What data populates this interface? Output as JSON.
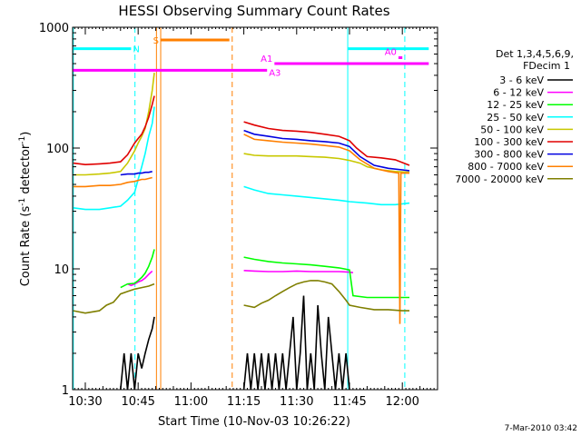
{
  "chart_data": {
    "type": "line",
    "title": "HESSI Observing Summary Count Rates",
    "xlabel": "Start Time (10-Nov-03 10:26:22)",
    "ylabel_main": "Count Rate (s",
    "ylabel_sup1": "-1",
    "ylabel_mid": " detector",
    "ylabel_sup2": "-1",
    "ylabel_end": ")",
    "footer": "7-Mar-2010 03:42",
    "y_scale": "log",
    "ylim": [
      1,
      1000
    ],
    "xlim_min": [
      626.4,
      730
    ],
    "y_ticks": [
      {
        "value": 1,
        "label": "1"
      },
      {
        "value": 10,
        "label": "10"
      },
      {
        "value": 100,
        "label": "100"
      },
      {
        "value": 1000,
        "label": "1000"
      }
    ],
    "x_ticks": [
      {
        "min": 630,
        "label": "10:30"
      },
      {
        "min": 645,
        "label": "10:45"
      },
      {
        "min": 660,
        "label": "11:00"
      },
      {
        "min": 675,
        "label": "11:15"
      },
      {
        "min": 690,
        "label": "11:30"
      },
      {
        "min": 705,
        "label": "11:45"
      },
      {
        "min": 720,
        "label": "12:00"
      }
    ],
    "legend": {
      "placement": "right",
      "header": [
        "Det 1,3,4,5,6,9,",
        "FDecim 1"
      ],
      "entries": [
        {
          "label": "3 - 6 keV",
          "color": "#000000"
        },
        {
          "label": "6 - 12 keV",
          "color": "#ff00ff"
        },
        {
          "label": "12 - 25 keV",
          "color": "#00ff00"
        },
        {
          "label": "25 - 50 keV",
          "color": "#00ffff"
        },
        {
          "label": "50 - 100 keV",
          "color": "#c8c800"
        },
        {
          "label": "100 - 300 keV",
          "color": "#e00000"
        },
        {
          "label": "300 - 800 keV",
          "color": "#0000e0"
        },
        {
          "label": "800 - 7000 keV",
          "color": "#ff7f00"
        },
        {
          "label": "7000 - 20000 keV",
          "color": "#7f7f00"
        }
      ]
    },
    "vertical_lines": [
      {
        "min": 626.6,
        "color": "#00ffff",
        "style": "solid"
      },
      {
        "min": 644.1,
        "color": "#00ffff",
        "style": "dashed"
      },
      {
        "min": 650.2,
        "color": "#ff7f00",
        "style": "solid"
      },
      {
        "min": 651.4,
        "color": "#ff7f00",
        "style": "solid"
      },
      {
        "min": 671.7,
        "color": "#ff7f00",
        "style": "dashed"
      },
      {
        "min": 704.5,
        "color": "#00ffff",
        "style": "solid"
      },
      {
        "min": 720.7,
        "color": "#00ffff",
        "style": "dashed"
      }
    ],
    "flag_bars": [
      {
        "label": "N",
        "color": "#00ffff",
        "y": 665,
        "segments": [
          [
            626.4,
            643.0
          ]
        ]
      },
      {
        "label": "",
        "color": "#00ffff",
        "y": 665,
        "segments": [
          [
            704.5,
            727.5
          ]
        ]
      },
      {
        "label": "S",
        "color": "#ff7f00",
        "y": 785,
        "segments": [
          [
            651.4,
            670.9
          ]
        ]
      },
      {
        "label": "A1",
        "color": "#ff00ff",
        "y": 500,
        "segments": [
          [
            683.7,
            727.5
          ]
        ]
      },
      {
        "label": "A3",
        "color": "#ff00ff",
        "y": 440,
        "segments": [
          [
            626.4,
            681.6
          ]
        ]
      },
      {
        "label": "A0",
        "color": "#ff00ff",
        "y": 560,
        "segments": [
          [
            718.9,
            720.0
          ]
        ]
      }
    ],
    "series": [
      {
        "name": "3 - 6 keV",
        "color": "#000000",
        "points": [
          [
            640,
            1
          ],
          [
            641,
            2
          ],
          [
            642,
            1
          ],
          [
            643,
            2
          ],
          [
            644,
            1
          ],
          [
            645,
            2
          ],
          [
            646,
            1.5
          ],
          [
            647,
            2
          ],
          [
            648,
            2.6
          ],
          [
            649,
            3.2
          ],
          [
            649.6,
            4
          ]
        ]
      },
      {
        "name": "3 - 6 keV",
        "color": "#000000",
        "points": [
          [
            675,
            1
          ],
          [
            676,
            2
          ],
          [
            677,
            1
          ],
          [
            678,
            2
          ],
          [
            679,
            1
          ],
          [
            680,
            2
          ],
          [
            681,
            1
          ],
          [
            682,
            2
          ],
          [
            683,
            1
          ],
          [
            684,
            2
          ],
          [
            685,
            1
          ],
          [
            686,
            2
          ],
          [
            687,
            1
          ],
          [
            688,
            2
          ],
          [
            689,
            4
          ],
          [
            690,
            1
          ],
          [
            691,
            2
          ],
          [
            692,
            6
          ],
          [
            693,
            1
          ],
          [
            694,
            2
          ],
          [
            695,
            1
          ],
          [
            696,
            5
          ],
          [
            697,
            2
          ],
          [
            698,
            1
          ],
          [
            699,
            4
          ],
          [
            700,
            2
          ],
          [
            701,
            1
          ],
          [
            702,
            2
          ],
          [
            703,
            1
          ],
          [
            704,
            2
          ],
          [
            705,
            1
          ]
        ]
      },
      {
        "name": "6 - 12 keV",
        "color": "#ff00ff",
        "points": [
          [
            642,
            7.5
          ],
          [
            643,
            7.3
          ],
          [
            644,
            7.5
          ],
          [
            645,
            7.8
          ],
          [
            646,
            8.0
          ],
          [
            647,
            8.4
          ],
          [
            648,
            9.0
          ],
          [
            649,
            9.6
          ]
        ]
      },
      {
        "name": "6 - 12 keV",
        "color": "#ff00ff",
        "points": [
          [
            675,
            9.7
          ],
          [
            678,
            9.6
          ],
          [
            682,
            9.5
          ],
          [
            686,
            9.5
          ],
          [
            690,
            9.6
          ],
          [
            694,
            9.5
          ],
          [
            698,
            9.5
          ],
          [
            702,
            9.5
          ],
          [
            705,
            9.4
          ],
          [
            706,
            9.3
          ]
        ]
      },
      {
        "name": "12 - 25 keV",
        "color": "#00ff00",
        "points": [
          [
            640,
            7.0
          ],
          [
            642,
            7.5
          ],
          [
            644,
            7.6
          ],
          [
            645,
            8.0
          ],
          [
            646,
            8.5
          ],
          [
            647,
            9.2
          ],
          [
            648,
            10.5
          ],
          [
            649,
            12.5
          ],
          [
            649.6,
            14.5
          ]
        ]
      },
      {
        "name": "12 - 25 keV",
        "color": "#00ff00",
        "points": [
          [
            675,
            12.5
          ],
          [
            678,
            12.0
          ],
          [
            682,
            11.5
          ],
          [
            686,
            11.2
          ],
          [
            690,
            11.0
          ],
          [
            694,
            10.8
          ],
          [
            698,
            10.5
          ],
          [
            702,
            10.2
          ],
          [
            705,
            9.8
          ],
          [
            706,
            6.0
          ],
          [
            710,
            5.8
          ],
          [
            714,
            5.8
          ],
          [
            718,
            5.8
          ],
          [
            722,
            5.8
          ]
        ]
      },
      {
        "name": "25 - 50 keV",
        "color": "#00ffff",
        "points": [
          [
            626.6,
            32
          ],
          [
            630,
            31
          ],
          [
            634,
            31
          ],
          [
            637,
            32
          ],
          [
            640,
            33
          ],
          [
            642,
            37
          ],
          [
            644,
            43
          ],
          [
            645,
            55
          ],
          [
            646,
            70
          ],
          [
            647,
            90
          ],
          [
            648,
            125
          ],
          [
            649,
            160
          ],
          [
            649.6,
            220
          ]
        ]
      },
      {
        "name": "25 - 50 keV",
        "color": "#00ffff",
        "points": [
          [
            675,
            48
          ],
          [
            678,
            45
          ],
          [
            682,
            42
          ],
          [
            686,
            41
          ],
          [
            690,
            40
          ],
          [
            694,
            39
          ],
          [
            698,
            38
          ],
          [
            702,
            37
          ],
          [
            705,
            36
          ],
          [
            710,
            35
          ],
          [
            714,
            34
          ],
          [
            718,
            34
          ],
          [
            722,
            35
          ]
        ]
      },
      {
        "name": "50 - 100 keV",
        "color": "#c8c800",
        "points": [
          [
            626.6,
            60
          ],
          [
            630,
            60
          ],
          [
            634,
            61
          ],
          [
            637,
            62
          ],
          [
            640,
            64
          ],
          [
            642,
            75
          ],
          [
            644,
            95
          ],
          [
            645,
            110
          ],
          [
            646,
            125
          ],
          [
            647,
            145
          ],
          [
            648,
            200
          ],
          [
            649,
            300
          ],
          [
            649.6,
            420
          ]
        ]
      },
      {
        "name": "50 - 100 keV",
        "color": "#c8c800",
        "points": [
          [
            675,
            90
          ],
          [
            678,
            87
          ],
          [
            682,
            86
          ],
          [
            686,
            86
          ],
          [
            690,
            86
          ],
          [
            694,
            85
          ],
          [
            698,
            84
          ],
          [
            702,
            82
          ],
          [
            705,
            79
          ],
          [
            708,
            75
          ],
          [
            710,
            70
          ],
          [
            714,
            66
          ],
          [
            718,
            64
          ],
          [
            722,
            63
          ]
        ]
      },
      {
        "name": "100 - 300 keV",
        "color": "#e00000",
        "points": [
          [
            626.6,
            75
          ],
          [
            630,
            73
          ],
          [
            634,
            74
          ],
          [
            637,
            75
          ],
          [
            640,
            77
          ],
          [
            642,
            88
          ],
          [
            644,
            110
          ],
          [
            645,
            120
          ],
          [
            646,
            130
          ],
          [
            647,
            150
          ],
          [
            648,
            180
          ],
          [
            649,
            230
          ],
          [
            649.6,
            270
          ]
        ]
      },
      {
        "name": "100 - 300 keV",
        "color": "#e00000",
        "points": [
          [
            675,
            165
          ],
          [
            678,
            155
          ],
          [
            682,
            145
          ],
          [
            686,
            140
          ],
          [
            690,
            138
          ],
          [
            694,
            135
          ],
          [
            698,
            130
          ],
          [
            702,
            125
          ],
          [
            705,
            115
          ],
          [
            707,
            100
          ],
          [
            710,
            85
          ],
          [
            714,
            83
          ],
          [
            718,
            80
          ],
          [
            722,
            72
          ]
        ]
      },
      {
        "name": "300 - 800 keV",
        "color": "#0000e0",
        "points": [
          [
            640,
            60
          ],
          [
            642,
            61
          ],
          [
            644,
            61
          ],
          [
            645,
            62
          ],
          [
            646,
            62
          ],
          [
            647,
            63
          ],
          [
            648,
            63
          ],
          [
            649,
            64
          ]
        ]
      },
      {
        "name": "300 - 800 keV",
        "color": "#0000e0",
        "points": [
          [
            675,
            140
          ],
          [
            678,
            130
          ],
          [
            682,
            125
          ],
          [
            686,
            120
          ],
          [
            690,
            118
          ],
          [
            694,
            115
          ],
          [
            698,
            113
          ],
          [
            702,
            110
          ],
          [
            705,
            103
          ],
          [
            708,
            85
          ],
          [
            712,
            72
          ],
          [
            716,
            68
          ],
          [
            720,
            66
          ],
          [
            722,
            65
          ]
        ]
      },
      {
        "name": "800 - 7000 keV",
        "color": "#ff7f00",
        "points": [
          [
            626.6,
            48
          ],
          [
            630,
            48
          ],
          [
            634,
            49
          ],
          [
            637,
            49
          ],
          [
            640,
            50
          ],
          [
            642,
            52
          ],
          [
            644,
            53
          ],
          [
            645,
            54
          ],
          [
            646,
            55
          ],
          [
            647,
            55
          ],
          [
            648,
            56
          ],
          [
            649,
            57
          ]
        ]
      },
      {
        "name": "800 - 7000 keV",
        "color": "#ff7f00",
        "points": [
          [
            675,
            130
          ],
          [
            678,
            118
          ],
          [
            682,
            115
          ],
          [
            686,
            112
          ],
          [
            690,
            110
          ],
          [
            694,
            108
          ],
          [
            698,
            105
          ],
          [
            702,
            102
          ],
          [
            705,
            95
          ],
          [
            708,
            80
          ],
          [
            712,
            68
          ],
          [
            716,
            64
          ],
          [
            719,
            62
          ],
          [
            719.3,
            3.5
          ],
          [
            719.6,
            62
          ],
          [
            722,
            62
          ]
        ]
      },
      {
        "name": "7000 - 20000 keV",
        "color": "#7f7f00",
        "points": [
          [
            626.6,
            4.5
          ],
          [
            630,
            4.3
          ],
          [
            634,
            4.5
          ],
          [
            636,
            5.0
          ],
          [
            638,
            5.3
          ],
          [
            640,
            6.2
          ],
          [
            642,
            6.5
          ],
          [
            644,
            6.8
          ],
          [
            646,
            7.0
          ],
          [
            648,
            7.2
          ],
          [
            649.6,
            7.5
          ]
        ]
      },
      {
        "name": "7000 - 20000 keV",
        "color": "#7f7f00",
        "points": [
          [
            675,
            5.0
          ],
          [
            678,
            4.8
          ],
          [
            680,
            5.2
          ],
          [
            682,
            5.5
          ],
          [
            684,
            6.0
          ],
          [
            686,
            6.5
          ],
          [
            688,
            7.0
          ],
          [
            690,
            7.5
          ],
          [
            692,
            7.8
          ],
          [
            694,
            8.0
          ],
          [
            696,
            8.0
          ],
          [
            698,
            7.8
          ],
          [
            700,
            7.5
          ],
          [
            702,
            6.5
          ],
          [
            704,
            5.5
          ],
          [
            705,
            5.0
          ],
          [
            708,
            4.8
          ],
          [
            712,
            4.6
          ],
          [
            716,
            4.6
          ],
          [
            720,
            4.5
          ],
          [
            722,
            4.5
          ]
        ]
      }
    ]
  }
}
